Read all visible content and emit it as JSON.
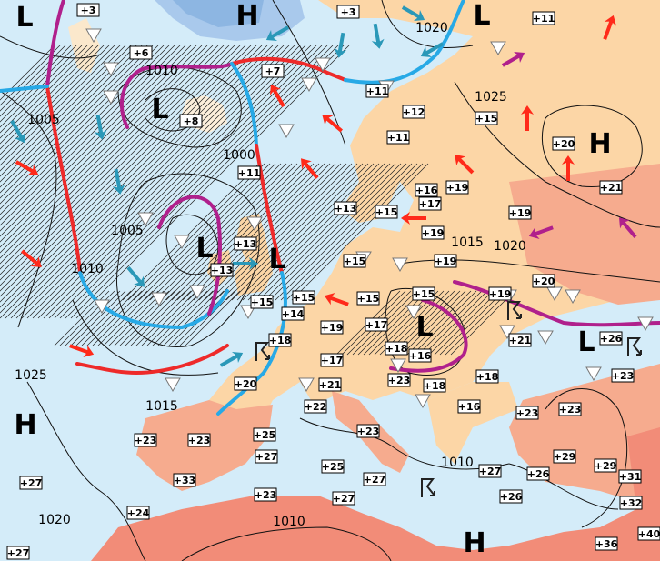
{
  "colors": {
    "sea": "#d4ecf9",
    "land_mild": "#fcd6a6",
    "land_warm": "#f6ab8e",
    "land_hot": "#f28c78",
    "ice": "#9cc2e8",
    "cold_front": "#27a9e6",
    "warm_front": "#ee2a2a",
    "occluded_front": "#b0208c",
    "warm_wind": "#ff2a1a",
    "cold_wind": "#2a98b8"
  },
  "pressure_centers": [
    "L",
    "H",
    "L",
    "L",
    "H",
    "L",
    "L",
    "L",
    "L",
    "H",
    "H"
  ],
  "isobar_labels": [
    "1020",
    "1010",
    "1025",
    "1005",
    "1000",
    "1005",
    "1015",
    "1020",
    "1010",
    "1025",
    "1015",
    "1010",
    "1020",
    "1010"
  ],
  "temperatures": [
    "+3",
    "+3",
    "+11",
    "+6",
    "+7",
    "+11",
    "+8",
    "+12",
    "+15",
    "+11",
    "+20",
    "+11",
    "+21",
    "+16",
    "+19",
    "+17",
    "+13",
    "+15",
    "+19",
    "+13",
    "+19",
    "+19",
    "+13",
    "+15",
    "+20",
    "+15",
    "+15",
    "+15",
    "+15",
    "+19",
    "+14",
    "+19",
    "+17",
    "+21",
    "+26",
    "+18",
    "+17",
    "+18",
    "+16",
    "+23",
    "+23",
    "+18",
    "+18",
    "+21",
    "+20",
    "+22",
    "+16",
    "+23",
    "+23",
    "+25",
    "+23",
    "+23",
    "+23",
    "+27",
    "+29",
    "+29",
    "+31",
    "+33",
    "+25",
    "+27",
    "+26",
    "+27",
    "+26",
    "+32",
    "+27",
    "+23",
    "+27",
    "+24",
    "+40",
    "+36",
    "+27"
  ],
  "icons": {
    "shower": "shower-triangle-icon",
    "thunderstorm": "thunderstorm-icon",
    "snow": "snow-icon",
    "wind": "wind-arrow-icon"
  }
}
